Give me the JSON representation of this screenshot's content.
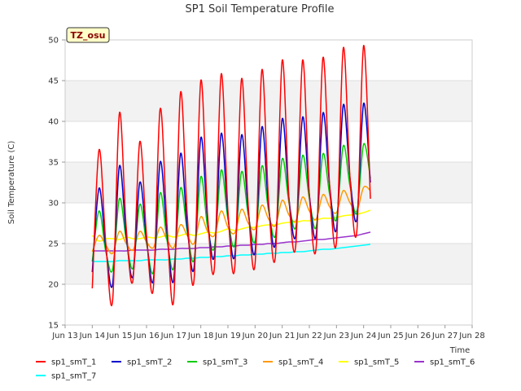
{
  "chart_data": {
    "type": "line",
    "title": "SP1 Soil Temperature Profile",
    "xlabel": "Time",
    "ylabel": "Soil Temperature (C)",
    "badge": "TZ_osu",
    "ylim": [
      15,
      50
    ],
    "xlim": [
      "Jun 13",
      "Jun 28"
    ],
    "yticks": [
      15,
      20,
      25,
      30,
      35,
      40,
      45,
      50
    ],
    "xticks": [
      "Jun 13",
      "Jun 14",
      "Jun 15",
      "Jun 16",
      "Jun 17",
      "Jun 18",
      "Jun 19",
      "Jun 20",
      "Jun 21",
      "Jun 22",
      "Jun 23",
      "Jun 24",
      "Jun 25",
      "Jun 26",
      "Jun 27",
      "Jun 28"
    ],
    "grid": "horizontal bands",
    "legend_position": "bottom",
    "x_days": [
      13.25,
      13.5,
      13.75,
      14.0,
      14.25,
      14.5,
      14.75,
      15.0,
      15.25,
      15.5,
      15.75,
      16.0,
      16.25,
      16.5,
      16.75,
      17.0,
      17.25,
      17.5,
      17.75,
      18.0,
      18.25,
      18.5,
      18.75,
      19.0,
      19.25,
      19.5,
      19.75,
      20.0,
      20.25,
      20.5,
      20.75,
      21.0,
      21.25,
      21.5,
      21.75,
      22.0,
      22.25,
      22.5,
      22.75,
      23.0,
      23.25,
      23.5,
      23.75,
      24.0,
      24.25,
      24.5,
      24.75,
      25.0,
      25.25,
      25.5,
      25.75,
      26.0,
      26.25,
      26.5,
      26.75,
      27.0,
      27.25,
      27.5,
      27.75
    ],
    "series": [
      {
        "name": "sp1_smT_1",
        "color": "#ff0000",
        "values": [
          null,
          null,
          null,
          19.5,
          36.5,
          25.0,
          18.0,
          41.0,
          27.0,
          20.5,
          37.5,
          26.0,
          19.5,
          41.5,
          27.5,
          18.0,
          43.5,
          28.5,
          20.5,
          45.0,
          28.5,
          22.0,
          45.8,
          29.0,
          22.0,
          45.2,
          29.5,
          22.5,
          46.3,
          30.0,
          23.5,
          47.5,
          30.5,
          24.8,
          47.5,
          31.0,
          24.5,
          47.8,
          32.0,
          25.2,
          49.0,
          33.0,
          26.5,
          49.3,
          30.5,
          null,
          null,
          null,
          null,
          null,
          null,
          null,
          null,
          null,
          null,
          null,
          null,
          null,
          null
        ]
      },
      {
        "name": "sp1_smT_2",
        "color": "#0000cc",
        "values": [
          null,
          null,
          null,
          21.5,
          31.8,
          24.5,
          20.0,
          34.5,
          26.0,
          21.0,
          32.5,
          25.5,
          20.5,
          35.0,
          26.5,
          20.5,
          36.0,
          27.0,
          22.0,
          38.0,
          28.0,
          23.5,
          38.5,
          28.5,
          23.5,
          38.3,
          29.0,
          24.0,
          39.3,
          29.5,
          25.0,
          40.3,
          30.5,
          26.0,
          40.5,
          31.0,
          26.0,
          41.0,
          32.0,
          26.8,
          42.0,
          33.0,
          28.0,
          42.2,
          32.5,
          null,
          null,
          null,
          null,
          null,
          null,
          null,
          null,
          null,
          null,
          null,
          null,
          null,
          null
        ]
      },
      {
        "name": "sp1_smT_3",
        "color": "#00cc00",
        "values": [
          null,
          null,
          null,
          22.8,
          29.0,
          24.0,
          21.8,
          30.5,
          25.5,
          22.0,
          29.8,
          25.0,
          21.5,
          31.2,
          25.5,
          22.0,
          31.8,
          26.5,
          23.0,
          33.2,
          27.0,
          24.5,
          34.0,
          28.0,
          24.8,
          33.8,
          28.5,
          25.3,
          34.5,
          29.0,
          26.0,
          35.4,
          30.0,
          27.0,
          35.8,
          30.5,
          27.0,
          36.0,
          31.0,
          28.0,
          37.0,
          32.0,
          28.8,
          37.2,
          33.0,
          null,
          null,
          null,
          null,
          null,
          null,
          null,
          null,
          null,
          null,
          null,
          null,
          null,
          null
        ]
      },
      {
        "name": "sp1_smT_4",
        "color": "#ff9900",
        "values": [
          null,
          null,
          null,
          24.0,
          26.0,
          24.8,
          23.8,
          26.5,
          25.0,
          24.2,
          26.5,
          25.2,
          24.5,
          27.0,
          25.5,
          24.5,
          27.3,
          26.0,
          25.0,
          28.3,
          26.5,
          26.0,
          29.0,
          27.0,
          26.3,
          29.2,
          27.5,
          26.8,
          29.7,
          28.0,
          27.2,
          30.3,
          28.5,
          27.8,
          30.7,
          29.0,
          28.0,
          31.0,
          29.5,
          28.8,
          31.5,
          30.0,
          29.0,
          31.9,
          31.5,
          null,
          null,
          null,
          null,
          null,
          null,
          null,
          null,
          null,
          null,
          null,
          null,
          null,
          null
        ]
      },
      {
        "name": "sp1_smT_5",
        "color": "#ffff00",
        "values": [
          null,
          null,
          null,
          26.0,
          25.3,
          25.6,
          25.6,
          25.5,
          25.8,
          25.6,
          25.6,
          25.8,
          25.7,
          25.8,
          26.0,
          25.8,
          26.0,
          26.2,
          26.0,
          26.2,
          26.4,
          26.3,
          26.5,
          26.8,
          26.6,
          26.8,
          27.0,
          27.0,
          27.2,
          27.3,
          27.3,
          27.5,
          27.6,
          27.6,
          27.8,
          27.8,
          27.9,
          28.1,
          28.1,
          28.2,
          28.4,
          28.5,
          28.6,
          28.8,
          29.1,
          null,
          null,
          null,
          null,
          null,
          null,
          null,
          null,
          null,
          null,
          null,
          null,
          null,
          null
        ]
      },
      {
        "name": "sp1_smT_6",
        "color": "#9933cc",
        "values": [
          null,
          null,
          null,
          24.1,
          24.1,
          24.1,
          24.1,
          24.1,
          24.1,
          24.2,
          24.2,
          24.2,
          24.2,
          24.3,
          24.3,
          24.3,
          24.4,
          24.4,
          24.4,
          24.5,
          24.5,
          24.6,
          24.6,
          24.7,
          24.7,
          24.8,
          24.8,
          24.9,
          24.9,
          25.0,
          25.0,
          25.1,
          25.2,
          25.2,
          25.3,
          25.4,
          25.5,
          25.5,
          25.6,
          25.7,
          25.8,
          25.9,
          26.0,
          26.2,
          26.4,
          null,
          null,
          null,
          null,
          null,
          null,
          null,
          null,
          null,
          null,
          null,
          null,
          null,
          null
        ]
      },
      {
        "name": "sp1_smT_7",
        "color": "#00ffff",
        "values": [
          null,
          null,
          null,
          22.8,
          22.8,
          22.8,
          22.8,
          22.9,
          22.9,
          22.9,
          22.9,
          23.0,
          23.0,
          23.0,
          23.0,
          23.1,
          23.1,
          23.2,
          23.2,
          23.3,
          23.3,
          23.4,
          23.4,
          23.5,
          23.5,
          23.6,
          23.6,
          23.7,
          23.7,
          23.8,
          23.8,
          23.9,
          23.9,
          24.0,
          24.0,
          24.1,
          24.2,
          24.3,
          24.3,
          24.4,
          24.5,
          24.6,
          24.7,
          24.8,
          24.9,
          null,
          null,
          null,
          null,
          null,
          null,
          null,
          null,
          null,
          null,
          null,
          null,
          null,
          null
        ]
      }
    ]
  }
}
